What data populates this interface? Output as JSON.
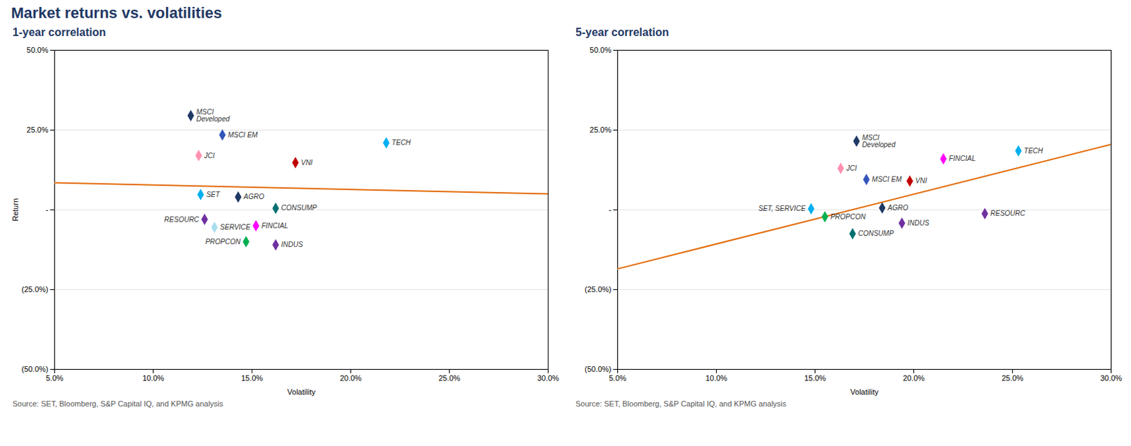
{
  "title": "Market returns vs. volatilities",
  "chart_data": [
    {
      "type": "scatter",
      "subtitle": "1-year correlation",
      "source": "Source: SET, Bloomberg, S&P Capital IQ, and KPMG analysis",
      "xlabel": "Volatility",
      "ylabel": "Return",
      "xlim": [
        0.05,
        0.3
      ],
      "ylim": [
        -0.5,
        0.5
      ],
      "xticks": [
        {
          "value": 0.05,
          "label": "5.0%"
        },
        {
          "value": 0.1,
          "label": "10.0%"
        },
        {
          "value": 0.15,
          "label": "15.0%"
        },
        {
          "value": 0.2,
          "label": "20.0%"
        },
        {
          "value": 0.25,
          "label": "25.0%"
        },
        {
          "value": 0.3,
          "label": "30.0%"
        }
      ],
      "yticks": [
        {
          "value": -0.5,
          "label": "(50.0%)"
        },
        {
          "value": -0.25,
          "label": "(25.0%)"
        },
        {
          "value": 0.0,
          "label": "-"
        },
        {
          "value": 0.25,
          "label": "25.0%"
        },
        {
          "value": 0.5,
          "label": "50.0%"
        }
      ],
      "grid": true,
      "marker": "diamond",
      "labels": [
        "MSCI\nDeveloped",
        "MSCI EM",
        "JCI",
        "SET",
        "AGRO",
        "VNI",
        "TECH",
        "RESOURC",
        "SERVICE",
        "CONSUMP",
        "FINCIAL",
        "PROPCON",
        "INDUS"
      ],
      "x": [
        0.119,
        0.135,
        0.123,
        0.124,
        0.143,
        0.172,
        0.218,
        0.126,
        0.131,
        0.162,
        0.152,
        0.147,
        0.162
      ],
      "values": [
        0.295,
        0.235,
        0.17,
        0.048,
        0.04,
        0.148,
        0.21,
        -0.03,
        -0.055,
        0.005,
        -0.05,
        -0.1,
        -0.11
      ],
      "colors": [
        "#1f3864",
        "#3355bb",
        "#ff91b0",
        "#00b0f0",
        "#1f3864",
        "#c00000",
        "#00b0f0",
        "#7030a0",
        "#aaddee",
        "#007070",
        "#ff00ff",
        "#00b050",
        "#7030a0"
      ],
      "trendline": {
        "type": "line",
        "color": "#e36c09",
        "x": [
          0.05,
          0.3
        ],
        "values": [
          0.085,
          0.05
        ]
      }
    },
    {
      "type": "scatter",
      "subtitle": "5-year correlation",
      "source": "Source: SET, Bloomberg, S&P Capital IQ, and KPMG analysis",
      "xlabel": "Volatility",
      "xlim": [
        0.05,
        0.3
      ],
      "ylim": [
        -0.5,
        0.5
      ],
      "xticks": [
        {
          "value": 0.05,
          "label": "5.0%"
        },
        {
          "value": 0.1,
          "label": "10.0%"
        },
        {
          "value": 0.15,
          "label": "15.0%"
        },
        {
          "value": 0.2,
          "label": "20.0%"
        },
        {
          "value": 0.25,
          "label": "25.0%"
        },
        {
          "value": 0.3,
          "label": "30.0%"
        }
      ],
      "yticks": [
        {
          "value": -0.5,
          "label": "(50.0%)"
        },
        {
          "value": -0.25,
          "label": "(25.0%)"
        },
        {
          "value": 0.0,
          "label": "-"
        },
        {
          "value": 0.25,
          "label": "25.0%"
        },
        {
          "value": 0.5,
          "label": "50.0%"
        }
      ],
      "grid": true,
      "marker": "diamond",
      "labels": [
        "MSCI\nDeveloped",
        "MSCI EM",
        "JCI",
        "SET, SERVICE",
        "AGRO",
        "VNI",
        "TECH",
        "RESOURC",
        "CONSUMP",
        "FINCIAL",
        "PROPCON",
        "INDUS"
      ],
      "x": [
        0.171,
        0.176,
        0.163,
        0.148,
        0.184,
        0.198,
        0.253,
        0.236,
        0.169,
        0.215,
        0.155,
        0.194
      ],
      "values": [
        0.215,
        0.095,
        0.13,
        0.003,
        0.006,
        0.09,
        0.185,
        -0.012,
        -0.075,
        0.16,
        -0.022,
        -0.042
      ],
      "colors": [
        "#1f3864",
        "#3355bb",
        "#ff91b0",
        "#00b0f0",
        "#1f3864",
        "#c00000",
        "#00b0f0",
        "#7030a0",
        "#007070",
        "#ff00ff",
        "#00b050",
        "#7030a0"
      ],
      "trendline": {
        "type": "line",
        "color": "#e36c09",
        "x": [
          0.05,
          0.3
        ],
        "values": [
          -0.185,
          0.205
        ]
      }
    }
  ]
}
